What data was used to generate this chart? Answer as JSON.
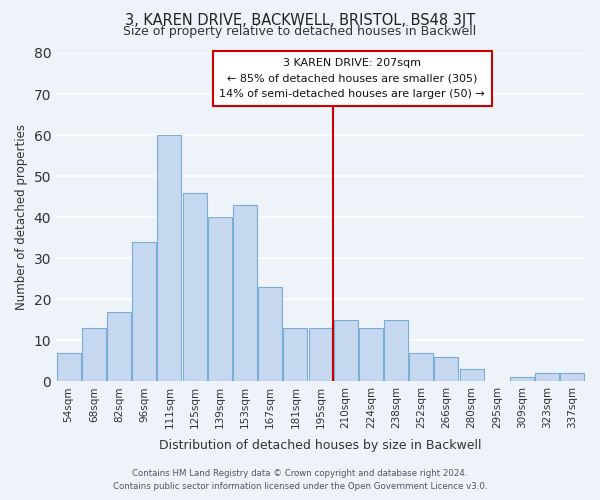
{
  "title": "3, KAREN DRIVE, BACKWELL, BRISTOL, BS48 3JT",
  "subtitle": "Size of property relative to detached houses in Backwell",
  "xlabel": "Distribution of detached houses by size in Backwell",
  "ylabel": "Number of detached properties",
  "bar_labels": [
    "54sqm",
    "68sqm",
    "82sqm",
    "96sqm",
    "111sqm",
    "125sqm",
    "139sqm",
    "153sqm",
    "167sqm",
    "181sqm",
    "195sqm",
    "210sqm",
    "224sqm",
    "238sqm",
    "252sqm",
    "266sqm",
    "280sqm",
    "295sqm",
    "309sqm",
    "323sqm",
    "337sqm"
  ],
  "bar_heights": [
    7,
    13,
    17,
    34,
    60,
    46,
    40,
    43,
    23,
    13,
    13,
    15,
    13,
    15,
    7,
    6,
    3,
    0,
    1,
    2,
    2
  ],
  "bar_color": "#c5d8ef",
  "bar_edge_color": "#7aaed6",
  "background_color": "#eef2f9",
  "grid_color": "#ffffff",
  "ylim": [
    0,
    80
  ],
  "yticks": [
    0,
    10,
    20,
    30,
    40,
    50,
    60,
    70,
    80
  ],
  "vline_color": "#cc0000",
  "vline_index": 10.5,
  "annotation_title": "3 KAREN DRIVE: 207sqm",
  "annotation_line1": "← 85% of detached houses are smaller (305)",
  "annotation_line2": "14% of semi-detached houses are larger (50) →",
  "footer_line1": "Contains HM Land Registry data © Crown copyright and database right 2024.",
  "footer_line2": "Contains public sector information licensed under the Open Government Licence v3.0."
}
